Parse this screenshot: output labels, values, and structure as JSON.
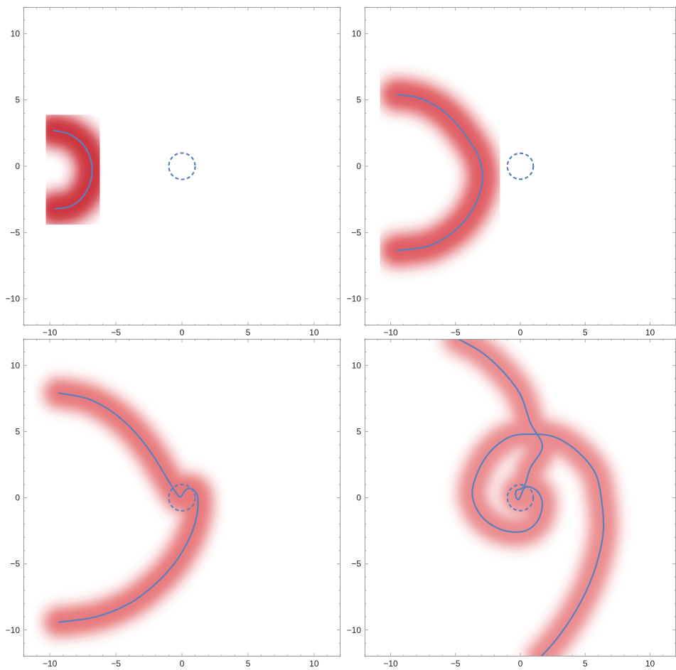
{
  "chart_data": [
    {
      "type": "line",
      "panel": "top-left",
      "xlim": [
        -12,
        12
      ],
      "ylim": [
        -12,
        12
      ],
      "xticks": [
        "−10",
        "−5",
        "0",
        "5",
        "10"
      ],
      "yticks": [
        "10",
        "5",
        "0",
        "−5",
        "−10"
      ],
      "grid": false,
      "reference_circle": {
        "center": [
          0,
          0
        ],
        "radius": 1,
        "style": "dashed"
      },
      "curve": [
        [
          -9.7,
          2.7
        ],
        [
          -8.6,
          2.45
        ],
        [
          -7.6,
          1.75
        ],
        [
          -7.0,
          0.8
        ],
        [
          -6.8,
          -0.3
        ],
        [
          -7.0,
          -1.4
        ],
        [
          -7.6,
          -2.4
        ],
        [
          -8.5,
          -3.05
        ],
        [
          -9.6,
          -3.2
        ]
      ],
      "density_band": {
        "color": "#c81e28",
        "width": 2.2,
        "peak_opacity": 0.85
      }
    },
    {
      "type": "line",
      "panel": "top-right",
      "xlim": [
        -12,
        12
      ],
      "ylim": [
        -12,
        12
      ],
      "xticks": [
        "−10",
        "−5",
        "0",
        "5",
        "10"
      ],
      "yticks": [
        "10",
        "5",
        "0",
        "−5",
        "−10"
      ],
      "grid": false,
      "reference_circle": {
        "center": [
          0,
          0
        ],
        "radius": 1,
        "style": "dashed"
      },
      "curve": [
        [
          -9.5,
          5.4
        ],
        [
          -8.0,
          5.2
        ],
        [
          -6.6,
          4.6
        ],
        [
          -5.3,
          3.6
        ],
        [
          -4.2,
          2.3
        ],
        [
          -3.3,
          0.9
        ],
        [
          -2.9,
          -0.8
        ],
        [
          -3.3,
          -2.5
        ],
        [
          -4.2,
          -4.0
        ],
        [
          -5.5,
          -5.2
        ],
        [
          -7.2,
          -6.05
        ],
        [
          -9.5,
          -6.35
        ]
      ],
      "density_band": {
        "color": "#d73037",
        "width": 2.2,
        "peak_opacity": 0.7
      }
    },
    {
      "type": "line",
      "panel": "bottom-left",
      "xlim": [
        -12,
        12
      ],
      "ylim": [
        -12,
        12
      ],
      "xticks": [
        "−10",
        "−5",
        "0",
        "5",
        "10"
      ],
      "yticks": [
        "10",
        "5",
        "0",
        "−5",
        "−10"
      ],
      "grid": false,
      "reference_circle": {
        "center": [
          0,
          0
        ],
        "radius": 1,
        "style": "dashed"
      },
      "curve": [
        [
          -9.3,
          7.9
        ],
        [
          -7.2,
          7.5
        ],
        [
          -5.3,
          6.5
        ],
        [
          -3.6,
          5.0
        ],
        [
          -2.2,
          3.2
        ],
        [
          -1.1,
          1.4
        ],
        [
          -0.4,
          0.3
        ],
        [
          -0.1,
          0.05
        ],
        [
          0.2,
          0.5
        ],
        [
          0.5,
          0.7
        ],
        [
          0.9,
          0.55
        ],
        [
          1.2,
          0.0
        ],
        [
          1.1,
          -1.5
        ],
        [
          0.5,
          -3.2
        ],
        [
          -0.6,
          -5.0
        ],
        [
          -2.1,
          -6.6
        ],
        [
          -4.0,
          -8.0
        ],
        [
          -6.5,
          -9.0
        ],
        [
          -9.3,
          -9.4
        ]
      ],
      "density_band": {
        "color": "#dc3c41",
        "width": 2.0,
        "peak_opacity": 0.6
      }
    },
    {
      "type": "line",
      "panel": "bottom-right",
      "xlim": [
        -12,
        12
      ],
      "ylim": [
        -12,
        12
      ],
      "xticks": [
        "−10",
        "−5",
        "0",
        "5",
        "10"
      ],
      "yticks": [
        "10",
        "5",
        "0",
        "−5",
        "−10"
      ],
      "grid": false,
      "reference_circle": {
        "center": [
          0,
          0
        ],
        "radius": 1,
        "style": "dashed"
      },
      "curve": [
        [
          -4.8,
          12.0
        ],
        [
          -3.0,
          11.0
        ],
        [
          -1.4,
          9.6
        ],
        [
          0.0,
          7.8
        ],
        [
          0.8,
          5.6
        ],
        [
          1.7,
          3.9
        ],
        [
          0.8,
          2.3
        ],
        [
          0.4,
          1.1
        ],
        [
          0.1,
          0.7
        ],
        [
          -0.3,
          0.55
        ],
        [
          -0.35,
          0.1
        ],
        [
          -0.1,
          -0.1
        ],
        [
          0.4,
          0.8
        ],
        [
          1.3,
          0.5
        ],
        [
          1.7,
          -0.5
        ],
        [
          1.3,
          -1.8
        ],
        [
          0.2,
          -2.55
        ],
        [
          -1.5,
          -2.4
        ],
        [
          -3.0,
          -1.4
        ],
        [
          -3.7,
          0.2
        ],
        [
          -3.3,
          1.9
        ],
        [
          -2.3,
          3.5
        ],
        [
          -0.8,
          4.6
        ],
        [
          0.8,
          4.8
        ],
        [
          2.6,
          4.6
        ],
        [
          4.4,
          3.5
        ],
        [
          5.8,
          1.8
        ],
        [
          6.3,
          -0.5
        ],
        [
          6.4,
          -2.5
        ],
        [
          6.0,
          -4.6
        ],
        [
          5.2,
          -6.8
        ],
        [
          4.0,
          -9.0
        ],
        [
          2.7,
          -10.8
        ],
        [
          1.6,
          -12.0
        ]
      ],
      "density_band": {
        "color": "#dc3c41",
        "width": 2.0,
        "peak_opacity": 0.5
      }
    }
  ]
}
